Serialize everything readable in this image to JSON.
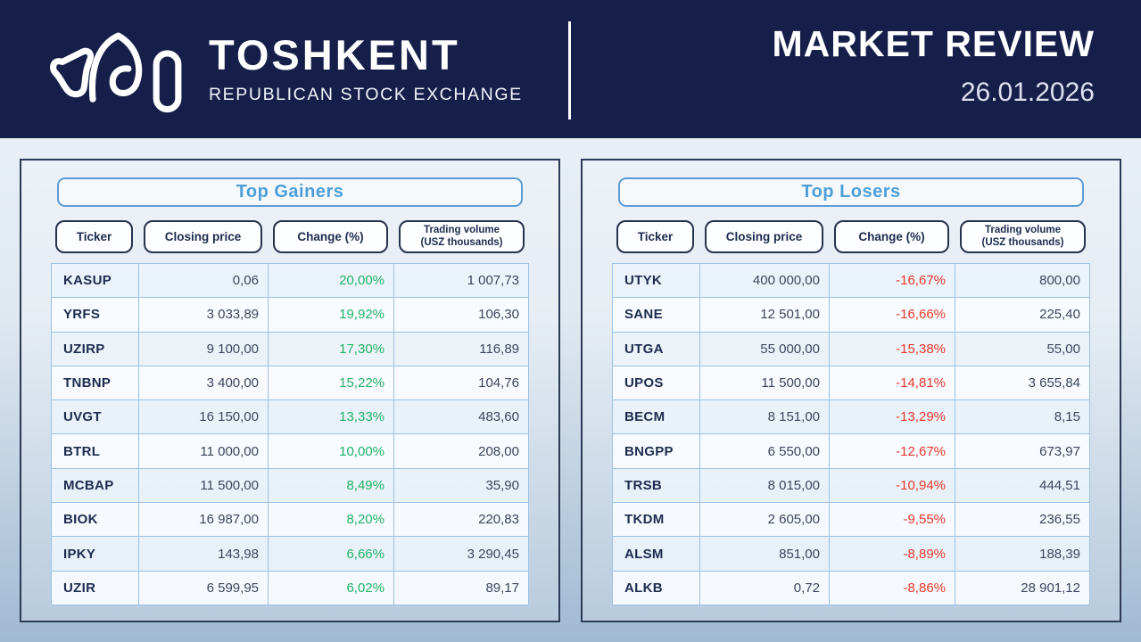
{
  "header": {
    "logo": "toshkent-stock-exchange-logo",
    "exchange_name": "TOSHKENT",
    "exchange_subtitle": "REPUBLICAN STOCK EXCHANGE",
    "report_title": "MARKET REVIEW",
    "report_date": "26.01.2026"
  },
  "columns": {
    "ticker": "Ticker",
    "closing_price": "Closing price",
    "change": "Change (%)",
    "volume_line1": "Trading volume",
    "volume_line2": "(USZ thousands)"
  },
  "gainers": {
    "title": "Top Gainers",
    "rows": [
      {
        "ticker": "KASUP",
        "closing_price": "0,06",
        "change_pct": "20,00%",
        "volume": "1 007,73"
      },
      {
        "ticker": "YRFS",
        "closing_price": "3 033,89",
        "change_pct": "19,92%",
        "volume": "106,30"
      },
      {
        "ticker": "UZIRP",
        "closing_price": "9 100,00",
        "change_pct": "17,30%",
        "volume": "116,89"
      },
      {
        "ticker": "TNBNP",
        "closing_price": "3 400,00",
        "change_pct": "15,22%",
        "volume": "104,76"
      },
      {
        "ticker": "UVGT",
        "closing_price": "16 150,00",
        "change_pct": "13,33%",
        "volume": "483,60"
      },
      {
        "ticker": "BTRL",
        "closing_price": "11 000,00",
        "change_pct": "10,00%",
        "volume": "208,00"
      },
      {
        "ticker": "MCBAP",
        "closing_price": "11 500,00",
        "change_pct": "8,49%",
        "volume": "35,90"
      },
      {
        "ticker": "BIOK",
        "closing_price": "16 987,00",
        "change_pct": "8,20%",
        "volume": "220,83"
      },
      {
        "ticker": "IPKY",
        "closing_price": "143,98",
        "change_pct": "6,66%",
        "volume": "3 290,45"
      },
      {
        "ticker": "UZIR",
        "closing_price": "6 599,95",
        "change_pct": "6,02%",
        "volume": "89,17"
      }
    ]
  },
  "losers": {
    "title": "Top Losers",
    "rows": [
      {
        "ticker": "UTYK",
        "closing_price": "400 000,00",
        "change_pct": "-16,67%",
        "volume": "800,00"
      },
      {
        "ticker": "SANE",
        "closing_price": "12 501,00",
        "change_pct": "-16,66%",
        "volume": "225,40"
      },
      {
        "ticker": "UTGA",
        "closing_price": "55 000,00",
        "change_pct": "-15,38%",
        "volume": "55,00"
      },
      {
        "ticker": "UPOS",
        "closing_price": "11 500,00",
        "change_pct": "-14,81%",
        "volume": "3 655,84"
      },
      {
        "ticker": "BECM",
        "closing_price": "8 151,00",
        "change_pct": "-13,29%",
        "volume": "8,15"
      },
      {
        "ticker": "BNGPP",
        "closing_price": "6 550,00",
        "change_pct": "-12,67%",
        "volume": "673,97"
      },
      {
        "ticker": "TRSB",
        "closing_price": "8 015,00",
        "change_pct": "-10,94%",
        "volume": "444,51"
      },
      {
        "ticker": "TKDM",
        "closing_price": "2 605,00",
        "change_pct": "-9,55%",
        "volume": "236,55"
      },
      {
        "ticker": "ALSM",
        "closing_price": "851,00",
        "change_pct": "-8,89%",
        "volume": "188,39"
      },
      {
        "ticker": "ALKB",
        "closing_price": "0,72",
        "change_pct": "-8,86%",
        "volume": "28 901,12"
      }
    ]
  },
  "colors": {
    "header_bg": "#161f4a",
    "accent_blue": "#4d9ed9",
    "border_blue": "#5b9bd5",
    "grid_blue": "#9cc2e5",
    "positive": "#21b366",
    "negative": "#e8392c",
    "panel_border": "#2d3a55",
    "text_dark": "#1d2b4f",
    "number_text": "#3c465c",
    "bg_top": "#eff4f9",
    "bg_bottom": "#a0bad3"
  }
}
